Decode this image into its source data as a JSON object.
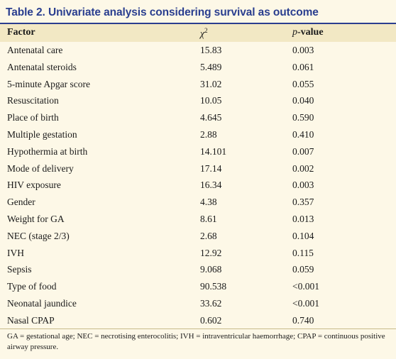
{
  "table": {
    "title": "Table 2. Univariate analysis considering survival as outcome",
    "headers": {
      "factor": "Factor",
      "chi": "χ",
      "chi_sup": "2",
      "p_prefix": "p",
      "p_suffix": "-value"
    },
    "rows": [
      {
        "factor": "Antenatal care",
        "chi": "15.83",
        "p": "0.003"
      },
      {
        "factor": "Antenatal steroids",
        "chi": "5.489",
        "p": "0.061"
      },
      {
        "factor": "5-minute Apgar score",
        "chi": "31.02",
        "p": "0.055"
      },
      {
        "factor": "Resuscitation",
        "chi": "10.05",
        "p": "0.040"
      },
      {
        "factor": "Place of birth",
        "chi": "4.645",
        "p": "0.590"
      },
      {
        "factor": "Multiple gestation",
        "chi": "2.88",
        "p": "0.410"
      },
      {
        "factor": "Hypothermia at birth",
        "chi": "14.101",
        "p": "0.007"
      },
      {
        "factor": "Mode of delivery",
        "chi": "17.14",
        "p": "0.002"
      },
      {
        "factor": "HIV exposure",
        "chi": "16.34",
        "p": "0.003"
      },
      {
        "factor": "Gender",
        "chi": "4.38",
        "p": "0.357"
      },
      {
        "factor": "Weight for GA",
        "chi": "8.61",
        "p": "0.013"
      },
      {
        "factor": "NEC (stage 2/3)",
        "chi": "2.68",
        "p": "0.104"
      },
      {
        "factor": "IVH",
        "chi": "12.92",
        "p": "0.115"
      },
      {
        "factor": "Sepsis",
        "chi": "9.068",
        "p": "0.059"
      },
      {
        "factor": "Type of food",
        "chi": "90.538",
        "p": "<0.001"
      },
      {
        "factor": "Neonatal jaundice",
        "chi": "33.62",
        "p": "<0.001"
      },
      {
        "factor": "Nasal CPAP",
        "chi": "0.602",
        "p": "0.740"
      }
    ],
    "footnote": "GA = gestational age; NEC = necrotising enterocolitis; IVH = intraventricular haemorrhage; CPAP = continuous positive airway pressure."
  },
  "colors": {
    "title": "#2a3e8f",
    "background": "#fdf8e7",
    "header_band": "#f2e8c4"
  }
}
